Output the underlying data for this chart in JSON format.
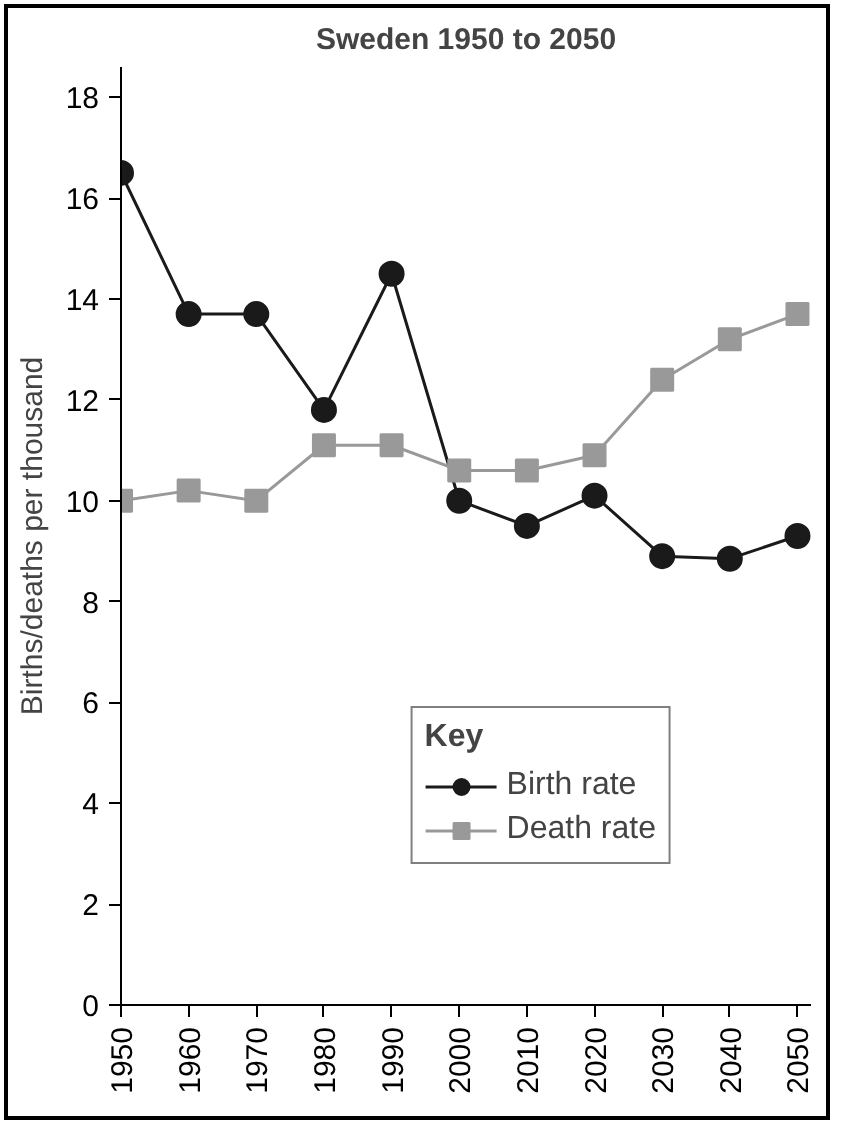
{
  "chart_data": {
    "type": "line",
    "title": "Sweden 1950 to 2050",
    "ylabel": "Births/deaths per thousand",
    "legend_title": "Key",
    "legend": "bottom right",
    "grid": false,
    "x": [
      1950,
      1960,
      1970,
      1980,
      1990,
      2000,
      2010,
      2020,
      2030,
      2040,
      2050
    ],
    "xlim": [
      1950,
      2052
    ],
    "xticks": [
      1950,
      1960,
      1970,
      1980,
      1990,
      2000,
      2010,
      2020,
      2030,
      2040,
      2050
    ],
    "ylim": [
      0,
      18.6
    ],
    "yticks": [
      0,
      2,
      4,
      6,
      8,
      10,
      12,
      14,
      16,
      18
    ],
    "series": [
      {
        "name": "Birth rate",
        "color": "#1a1a1a",
        "marker": "circle",
        "values": [
          16.5,
          13.7,
          13.7,
          11.8,
          14.5,
          10.0,
          9.5,
          10.1,
          8.9,
          8.85,
          9.3
        ]
      },
      {
        "name": "Death rate",
        "color": "#999999",
        "marker": "square",
        "values": [
          10.0,
          10.2,
          10.0,
          11.1,
          11.1,
          10.6,
          10.6,
          10.9,
          12.4,
          13.2,
          13.7
        ]
      }
    ]
  }
}
